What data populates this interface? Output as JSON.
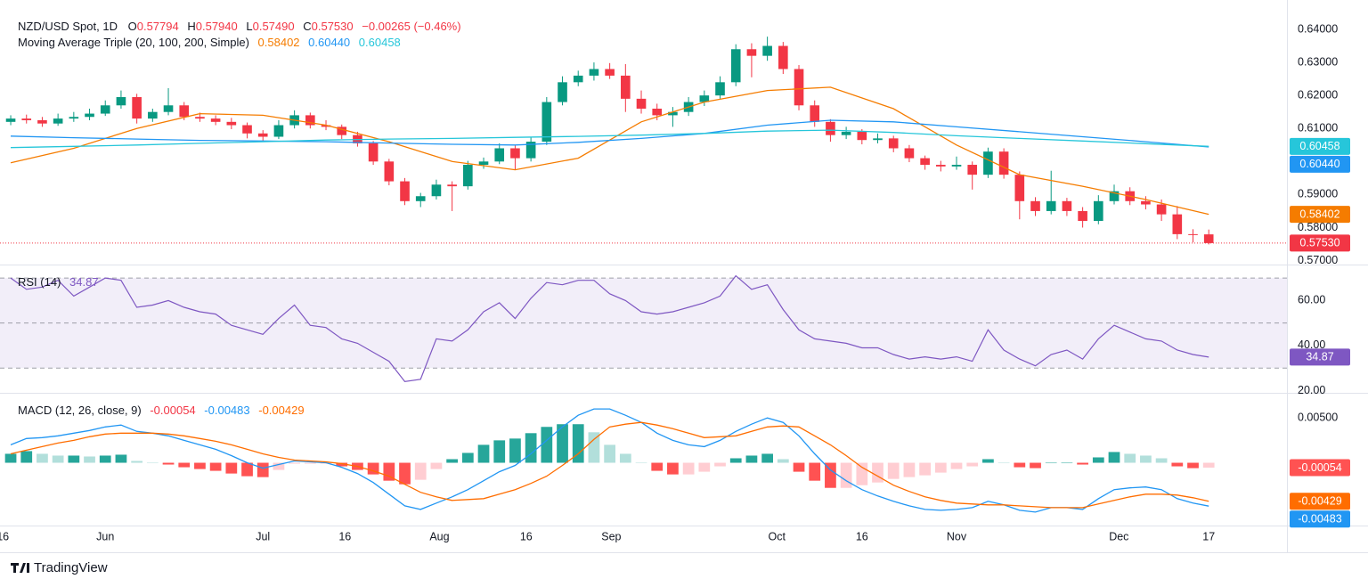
{
  "header": {
    "symbol": "NZD/USD Spot, 1D",
    "ohlc_letters": [
      "O",
      "H",
      "L",
      "C"
    ],
    "ohlc_values": [
      "0.57794",
      "0.57940",
      "0.57490",
      "0.57530"
    ],
    "change": "−0.00265 (−0.46%)"
  },
  "footer": {
    "brand": "TradingView"
  },
  "chart_data": [
    {
      "type": "candlestick",
      "colors": {
        "up": "#089981",
        "down": "#f23645"
      },
      "xlim": [
        -0.68,
        80.96
      ],
      "xticks": [
        {
          "value": -0.5,
          "label": "16"
        },
        {
          "value": 6,
          "label": "Jun"
        },
        {
          "value": 16,
          "label": "Jul"
        },
        {
          "value": 21.2,
          "label": "16"
        },
        {
          "value": 27.2,
          "label": "Aug"
        },
        {
          "value": 32.7,
          "label": "16"
        },
        {
          "value": 38.1,
          "label": "Sep"
        },
        {
          "value": 48.6,
          "label": "Oct"
        },
        {
          "value": 54,
          "label": "16"
        },
        {
          "value": 60,
          "label": "Nov"
        },
        {
          "value": 70.3,
          "label": "Dec"
        },
        {
          "value": 76,
          "label": "17"
        }
      ],
      "ylim": [
        0.5688,
        0.6489
      ],
      "yticks": [
        {
          "value": 0.64,
          "label": "0.64000"
        },
        {
          "value": 0.63,
          "label": "0.63000"
        },
        {
          "value": 0.62,
          "label": "0.62000"
        },
        {
          "value": 0.61,
          "label": "0.61000"
        },
        {
          "value": 0.6,
          "label": "0.60000"
        },
        {
          "value": 0.59,
          "label": "0.59000"
        },
        {
          "value": 0.58,
          "label": "0.58000"
        },
        {
          "value": 0.57,
          "label": "0.57000"
        }
      ],
      "ohlc": [
        [
          0.612,
          0.614,
          0.611,
          0.613
        ],
        [
          0.613,
          0.6142,
          0.6115,
          0.6125
        ],
        [
          0.6125,
          0.6135,
          0.6105,
          0.6115
        ],
        [
          0.6115,
          0.6145,
          0.6108,
          0.613
        ],
        [
          0.613,
          0.615,
          0.612,
          0.6135
        ],
        [
          0.6135,
          0.616,
          0.6125,
          0.6145
        ],
        [
          0.6145,
          0.6185,
          0.6138,
          0.617
        ],
        [
          0.617,
          0.6215,
          0.616,
          0.6195
        ],
        [
          0.6195,
          0.6205,
          0.6115,
          0.613
        ],
        [
          0.613,
          0.616,
          0.612,
          0.615
        ],
        [
          0.615,
          0.6222,
          0.614,
          0.617
        ],
        [
          0.617,
          0.618,
          0.6125,
          0.6135
        ],
        [
          0.6135,
          0.6148,
          0.612,
          0.613
        ],
        [
          0.613,
          0.614,
          0.611,
          0.612
        ],
        [
          0.612,
          0.6132,
          0.6098,
          0.611
        ],
        [
          0.611,
          0.6118,
          0.607,
          0.6085
        ],
        [
          0.6085,
          0.6095,
          0.6062,
          0.6075
        ],
        [
          0.6075,
          0.6125,
          0.6068,
          0.611
        ],
        [
          0.611,
          0.6155,
          0.61,
          0.614
        ],
        [
          0.614,
          0.6148,
          0.61,
          0.611
        ],
        [
          0.611,
          0.6125,
          0.6095,
          0.6105
        ],
        [
          0.6105,
          0.6112,
          0.6068,
          0.608
        ],
        [
          0.608,
          0.609,
          0.6045,
          0.6055
        ],
        [
          0.6055,
          0.6062,
          0.599,
          0.6
        ],
        [
          0.6,
          0.6008,
          0.5928,
          0.594
        ],
        [
          0.594,
          0.595,
          0.5868,
          0.588
        ],
        [
          0.588,
          0.5905,
          0.5862,
          0.5895
        ],
        [
          0.5895,
          0.5945,
          0.5885,
          0.593
        ],
        [
          0.593,
          0.594,
          0.585,
          0.5925
        ],
        [
          0.5925,
          0.6002,
          0.5915,
          0.599
        ],
        [
          0.599,
          0.6012,
          0.5978,
          0.6
        ],
        [
          0.6,
          0.6055,
          0.5992,
          0.604
        ],
        [
          0.604,
          0.605,
          0.5975,
          0.601
        ],
        [
          0.601,
          0.6075,
          0.6,
          0.606
        ],
        [
          0.606,
          0.6195,
          0.605,
          0.618
        ],
        [
          0.618,
          0.6258,
          0.617,
          0.624
        ],
        [
          0.624,
          0.6275,
          0.6228,
          0.626
        ],
        [
          0.626,
          0.63,
          0.6245,
          0.628
        ],
        [
          0.628,
          0.6298,
          0.625,
          0.626
        ],
        [
          0.626,
          0.6295,
          0.615,
          0.619
        ],
        [
          0.619,
          0.6215,
          0.6145,
          0.616
        ],
        [
          0.616,
          0.6175,
          0.6125,
          0.614
        ],
        [
          0.614,
          0.6165,
          0.6105,
          0.615
        ],
        [
          0.615,
          0.6195,
          0.6138,
          0.618
        ],
        [
          0.618,
          0.6215,
          0.6168,
          0.62
        ],
        [
          0.62,
          0.6258,
          0.619,
          0.624
        ],
        [
          0.624,
          0.6355,
          0.6228,
          0.634
        ],
        [
          0.634,
          0.6358,
          0.6255,
          0.632
        ],
        [
          0.632,
          0.6378,
          0.6305,
          0.635
        ],
        [
          0.635,
          0.6362,
          0.6265,
          0.628
        ],
        [
          0.628,
          0.6292,
          0.6155,
          0.617
        ],
        [
          0.617,
          0.6185,
          0.6105,
          0.612
        ],
        [
          0.612,
          0.6128,
          0.606,
          0.608
        ],
        [
          0.608,
          0.6105,
          0.6068,
          0.609
        ],
        [
          0.609,
          0.6098,
          0.6052,
          0.6065
        ],
        [
          0.6065,
          0.6085,
          0.6055,
          0.607
        ],
        [
          0.607,
          0.6078,
          0.6028,
          0.604
        ],
        [
          0.604,
          0.605,
          0.5998,
          0.601
        ],
        [
          0.601,
          0.6018,
          0.5975,
          0.599
        ],
        [
          0.599,
          0.6002,
          0.597,
          0.5985
        ],
        [
          0.5985,
          0.6015,
          0.5975,
          0.599
        ],
        [
          0.599,
          0.6,
          0.5915,
          0.596
        ],
        [
          0.596,
          0.6042,
          0.595,
          0.603
        ],
        [
          0.603,
          0.604,
          0.5948,
          0.596
        ],
        [
          0.596,
          0.597,
          0.5825,
          0.588
        ],
        [
          0.588,
          0.5892,
          0.5835,
          0.585
        ],
        [
          0.585,
          0.5972,
          0.584,
          0.588
        ],
        [
          0.588,
          0.589,
          0.5835,
          0.585
        ],
        [
          0.585,
          0.5862,
          0.58,
          0.582
        ],
        [
          0.582,
          0.5898,
          0.581,
          0.588
        ],
        [
          0.588,
          0.593,
          0.587,
          0.591
        ],
        [
          0.591,
          0.5922,
          0.5868,
          0.588
        ],
        [
          0.588,
          0.5895,
          0.5855,
          0.587
        ],
        [
          0.587,
          0.5885,
          0.582,
          0.584
        ],
        [
          0.584,
          0.5865,
          0.5765,
          0.578
        ],
        [
          0.578,
          0.5795,
          0.5755,
          0.57794
        ],
        [
          0.57794,
          0.5794,
          0.5749,
          0.5753
        ]
      ],
      "ma": {
        "label": "Moving Average Triple (20, 100, 200, Simple)",
        "legend_values": [
          "0.58402",
          "0.60440",
          "0.60458"
        ],
        "lines": [
          {
            "color": "#f57c00",
            "x": [
              0,
              4,
              8,
              12,
              16,
              20,
              24,
              28,
              32,
              36,
              40,
              44,
              48,
              52,
              56,
              60,
              64,
              68,
              72,
              76
            ],
            "values": [
              0.5996,
              0.604,
              0.61,
              0.6145,
              0.614,
              0.611,
              0.606,
              0.6,
              0.5975,
              0.601,
              0.612,
              0.618,
              0.6215,
              0.6225,
              0.616,
              0.605,
              0.596,
              0.5925,
              0.5885,
              0.58402
            ]
          },
          {
            "color": "#2196f3",
            "x": [
              0,
              4,
              8,
              12,
              16,
              20,
              24,
              28,
              32,
              36,
              40,
              44,
              48,
              52,
              56,
              60,
              64,
              68,
              72,
              76
            ],
            "values": [
              0.6077,
              0.6072,
              0.6068,
              0.6064,
              0.6062,
              0.606,
              0.6056,
              0.6052,
              0.605,
              0.6058,
              0.607,
              0.6085,
              0.611,
              0.6125,
              0.612,
              0.6105,
              0.609,
              0.6075,
              0.606,
              0.6044
            ]
          },
          {
            "color": "#26c6da",
            "x": [
              0,
              4,
              8,
              12,
              16,
              20,
              24,
              28,
              32,
              36,
              40,
              44,
              48,
              52,
              56,
              60,
              64,
              68,
              72,
              76
            ],
            "values": [
              0.6042,
              0.6046,
              0.605,
              0.6055,
              0.606,
              0.6065,
              0.6068,
              0.607,
              0.6073,
              0.6076,
              0.608,
              0.6085,
              0.6092,
              0.6095,
              0.6088,
              0.6078,
              0.607,
              0.6062,
              0.6054,
              0.60458
            ]
          }
        ]
      }
    },
    {
      "type": "rsi",
      "label": "RSI (14)",
      "color": "#7e57c2",
      "ylim": [
        19,
        75.6
      ],
      "yticks": [
        {
          "value": 60,
          "label": "60.00"
        },
        {
          "value": 40,
          "label": "40.00"
        },
        {
          "value": 20,
          "label": "20.00"
        }
      ],
      "levels": [
        70,
        50,
        30
      ],
      "values": [
        70,
        65,
        66,
        69,
        62,
        66,
        70,
        69,
        57,
        58,
        60,
        57,
        55,
        54,
        49,
        47,
        45,
        52,
        58,
        49,
        48,
        43,
        41,
        37,
        33,
        24,
        25,
        43,
        42,
        47,
        55,
        59,
        52,
        61,
        68,
        67,
        69,
        69,
        63,
        60,
        55,
        54,
        55,
        57,
        59,
        62,
        71,
        65,
        67,
        56,
        47,
        43,
        42,
        41,
        39,
        39,
        36,
        34,
        35,
        34,
        35,
        33,
        47,
        38,
        34,
        31,
        36,
        38,
        34,
        43,
        49,
        46,
        43,
        42,
        38,
        36,
        34.87
      ]
    },
    {
      "type": "macd",
      "label": "MACD (12, 26, close, 9)",
      "ylim": [
        -0.007,
        0.0077
      ],
      "yticks": [
        {
          "value": 0.005,
          "label": "0.00500"
        }
      ],
      "histogram": {
        "colors": [
          "#26a69a",
          "#b2dfdb",
          "#ff5252",
          "#ffcdd2"
        ],
        "values": [
          0.001,
          0.0013,
          0.001,
          0.0008,
          0.0008,
          0.0007,
          0.0008,
          0.0009,
          0.0002,
          0.0,
          -0.0002,
          -0.0005,
          -0.0007,
          -0.0009,
          -0.0012,
          -0.0015,
          -0.0016,
          -0.0008,
          -0.0001,
          -0.0001,
          -0.0001,
          -0.0004,
          -0.0008,
          -0.0013,
          -0.002,
          -0.0024,
          -0.0019,
          -0.0007,
          0.0004,
          0.0011,
          0.002,
          0.0025,
          0.0027,
          0.0033,
          0.004,
          0.0043,
          0.0043,
          0.0034,
          0.002,
          0.001,
          0.0,
          -0.0009,
          -0.0013,
          -0.0013,
          -0.001,
          -0.0004,
          0.0005,
          0.0008,
          0.001,
          0.0004,
          -0.001,
          -0.002,
          -0.0028,
          -0.0028,
          -0.0025,
          -0.0022,
          -0.0018,
          -0.0016,
          -0.0014,
          -0.0011,
          -0.0007,
          -0.0004,
          0.0004,
          0.0,
          -0.0005,
          -0.0006,
          0.0,
          0.0,
          -0.0002,
          0.0006,
          0.0012,
          0.001,
          0.0008,
          0.0005,
          -0.0004,
          -0.0006,
          -0.00054
        ]
      },
      "macd": {
        "color": "#2196f3",
        "values": [
          0.002,
          0.0027,
          0.0028,
          0.003,
          0.0033,
          0.0036,
          0.004,
          0.0042,
          0.0035,
          0.0033,
          0.003,
          0.0025,
          0.002,
          0.0015,
          0.0008,
          0.0,
          -0.0006,
          -0.0002,
          0.0002,
          0.0001,
          0.0,
          -0.0005,
          -0.0012,
          -0.0022,
          -0.0035,
          -0.0048,
          -0.0052,
          -0.0045,
          -0.0038,
          -0.003,
          -0.002,
          -0.001,
          -0.0003,
          0.001,
          0.0025,
          0.004,
          0.0053,
          0.006,
          0.006,
          0.0053,
          0.0045,
          0.0033,
          0.0025,
          0.002,
          0.0018,
          0.0025,
          0.0035,
          0.0043,
          0.005,
          0.0045,
          0.003,
          0.001,
          -0.0008,
          -0.002,
          -0.003,
          -0.0037,
          -0.0043,
          -0.0048,
          -0.0052,
          -0.0053,
          -0.0052,
          -0.005,
          -0.0043,
          -0.0047,
          -0.0053,
          -0.0055,
          -0.005,
          -0.005,
          -0.0052,
          -0.004,
          -0.003,
          -0.0028,
          -0.0027,
          -0.003,
          -0.004,
          -0.0045,
          -0.00483
        ]
      },
      "signal": {
        "color": "#ff6d00",
        "values": [
          0.001,
          0.0014,
          0.0018,
          0.0022,
          0.0025,
          0.0029,
          0.0032,
          0.0033,
          0.0033,
          0.0033,
          0.0032,
          0.003,
          0.0027,
          0.0024,
          0.002,
          0.0015,
          0.001,
          0.0006,
          0.0003,
          0.0002,
          0.0001,
          -0.0001,
          -0.0004,
          -0.0009,
          -0.0015,
          -0.0024,
          -0.0033,
          -0.0038,
          -0.0042,
          -0.0041,
          -0.004,
          -0.0035,
          -0.003,
          -0.0023,
          -0.0015,
          -0.0003,
          0.001,
          0.0026,
          0.004,
          0.0043,
          0.0045,
          0.0042,
          0.0038,
          0.0033,
          0.0028,
          0.0029,
          0.003,
          0.0035,
          0.004,
          0.0041,
          0.004,
          0.003,
          0.002,
          0.0008,
          -0.0005,
          -0.0015,
          -0.0025,
          -0.0032,
          -0.0038,
          -0.0042,
          -0.0045,
          -0.0046,
          -0.0047,
          -0.0047,
          -0.0048,
          -0.0049,
          -0.005,
          -0.005,
          -0.005,
          -0.0046,
          -0.0042,
          -0.0038,
          -0.0035,
          -0.0035,
          -0.0036,
          -0.0039,
          -0.00429
        ]
      }
    }
  ]
}
